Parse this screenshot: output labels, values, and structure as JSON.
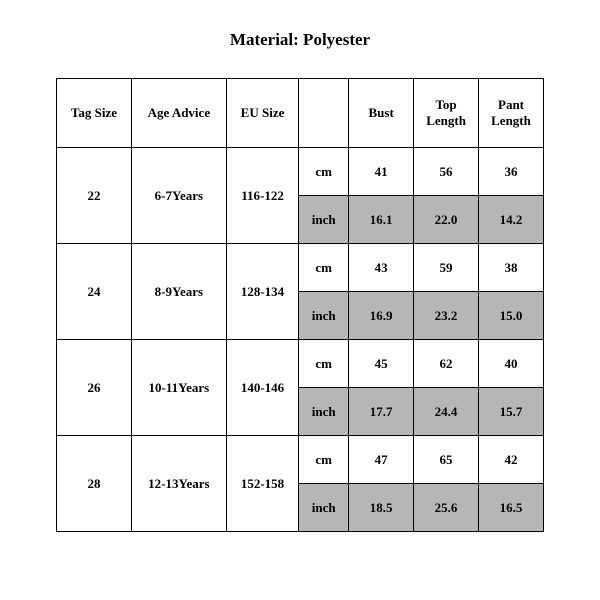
{
  "title": "Material: Polyester",
  "table": {
    "columns": [
      "Tag Size",
      "Age Advice",
      "EU Size",
      "",
      "Bust",
      "Top Length",
      "Pant Length"
    ],
    "header_bg": "#ffffff",
    "shade_bg": "#b6b6b6",
    "border_color": "#000000",
    "font_family": "Times New Roman",
    "title_fontsize": 17,
    "header_fontsize": 13,
    "cell_fontsize": 13,
    "rows": [
      {
        "tag": "22",
        "age": "6-7Years",
        "eu": "116-122",
        "cm": {
          "bust": "41",
          "top": "56",
          "pant": "36"
        },
        "inch": {
          "bust": "16.1",
          "top": "22.0",
          "pant": "14.2"
        }
      },
      {
        "tag": "24",
        "age": "8-9Years",
        "eu": "128-134",
        "cm": {
          "bust": "43",
          "top": "59",
          "pant": "38"
        },
        "inch": {
          "bust": "16.9",
          "top": "23.2",
          "pant": "15.0"
        }
      },
      {
        "tag": "26",
        "age": "10-11Years",
        "eu": "140-146",
        "cm": {
          "bust": "45",
          "top": "62",
          "pant": "40"
        },
        "inch": {
          "bust": "17.7",
          "top": "24.4",
          "pant": "15.7"
        }
      },
      {
        "tag": "28",
        "age": "12-13Years",
        "eu": "152-158",
        "cm": {
          "bust": "47",
          "top": "65",
          "pant": "42"
        },
        "inch": {
          "bust": "18.5",
          "top": "25.6",
          "pant": "16.5"
        }
      }
    ],
    "unit_labels": {
      "cm": "cm",
      "inch": "inch"
    }
  }
}
